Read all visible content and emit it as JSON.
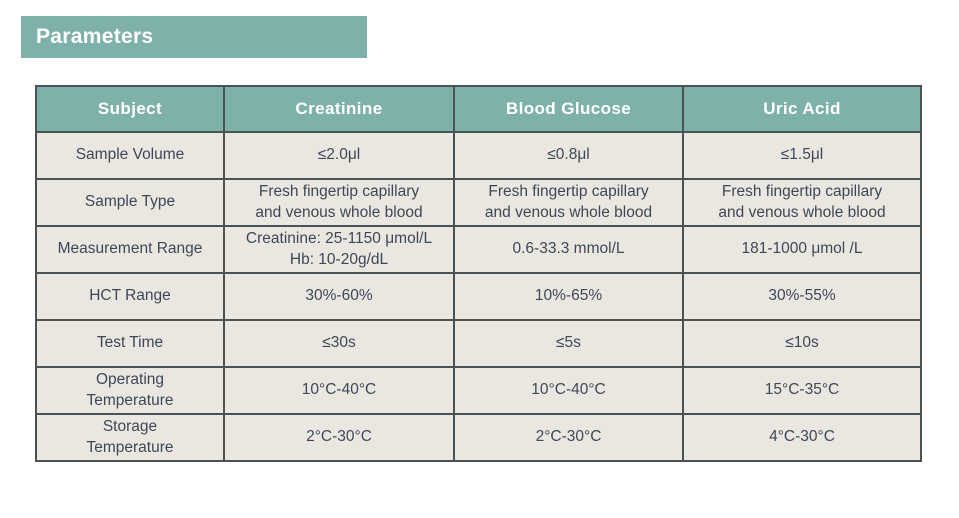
{
  "banner": {
    "title": "Parameters"
  },
  "table": {
    "columns": [
      "Subject",
      "Creatinine",
      "Blood Glucose",
      "Uric Acid"
    ],
    "rows": [
      {
        "label": "Sample Volume",
        "values": [
          "≤2.0μl",
          "≤0.8μl",
          "≤1.5μl"
        ]
      },
      {
        "label": "Sample Type",
        "values": [
          "Fresh fingertip capillary\nand venous whole blood",
          "Fresh fingertip capillary\nand venous whole blood",
          "Fresh fingertip capillary\nand venous whole blood"
        ]
      },
      {
        "label": "Measurement Range",
        "values": [
          "Creatinine: 25-1150 μmol/L\nHb: 10-20g/dL",
          "0.6-33.3 mmol/L",
          "181-1000 μmol /L"
        ]
      },
      {
        "label": "HCT Range",
        "values": [
          "30%-60%",
          "10%-65%",
          "30%-55%"
        ]
      },
      {
        "label": "Test Time",
        "values": [
          "≤30s",
          "≤5s",
          "≤10s"
        ]
      },
      {
        "label": "Operating\nTemperature",
        "values": [
          "10°C-40°C",
          "10°C-40°C",
          "15°C-35°C"
        ]
      },
      {
        "label": "Storage\nTemperature",
        "values": [
          "2°C-30°C",
          "2°C-30°C",
          "4°C-30°C"
        ]
      }
    ]
  },
  "colors": {
    "accent_teal": "#7fb1ab",
    "header_text": "#ffffff",
    "cell_bg": "#e9e7e0",
    "cell_text": "#3f4757",
    "border": "#4b5254",
    "page_bg": "#ffffff"
  }
}
